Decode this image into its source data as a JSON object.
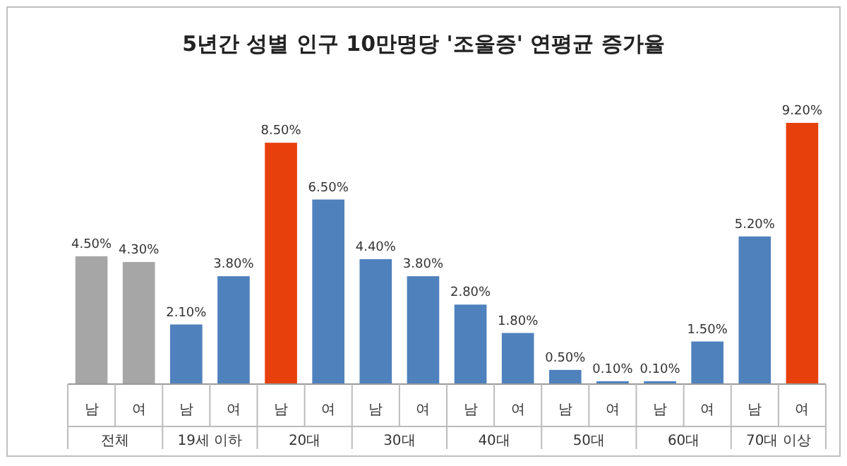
{
  "chart_data": {
    "type": "bar",
    "title": "5년간 성별 인구 10만명당 '조울증' 연평균 증가율",
    "categories": [
      "남",
      "여",
      "남",
      "여",
      "남",
      "여",
      "남",
      "여",
      "남",
      "여",
      "남",
      "여",
      "남",
      "여",
      "남",
      "여"
    ],
    "annotations": [
      "전체",
      "19세 이하",
      "20대",
      "30대",
      "40대",
      "50대",
      "60대",
      "70대 이상"
    ],
    "values": [
      4.5,
      4.3,
      2.1,
      3.8,
      8.5,
      6.5,
      4.4,
      3.8,
      2.8,
      1.8,
      0.5,
      0.1,
      0.1,
      1.5,
      5.2,
      9.2
    ],
    "colors": [
      "#a6a6a6",
      "#a6a6a6",
      "#4f81bd",
      "#4f81bd",
      "#e8400c",
      "#4f81bd",
      "#4f81bd",
      "#4f81bd",
      "#4f81bd",
      "#4f81bd",
      "#4f81bd",
      "#4f81bd",
      "#4f81bd",
      "#4f81bd",
      "#4f81bd",
      "#e8400c"
    ],
    "value_labels": [
      "4.50%",
      "4.30%",
      "2.10%",
      "3.80%",
      "8.50%",
      "6.50%",
      "4.40%",
      "3.80%",
      "2.80%",
      "1.80%",
      "0.50%",
      "0.10%",
      "0.10%",
      "1.50%",
      "5.20%",
      "9.20%"
    ]
  }
}
